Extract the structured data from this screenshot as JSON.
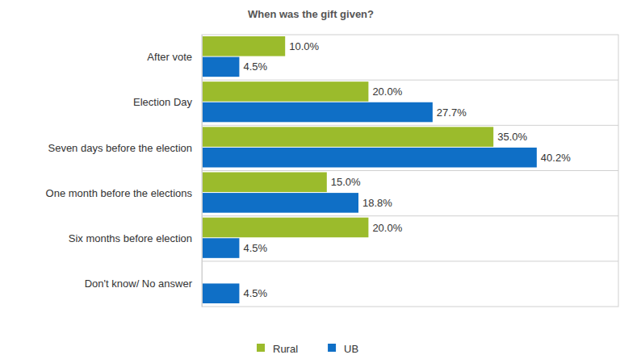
{
  "chart_data": {
    "type": "bar",
    "title": "When was the gift given?",
    "orientation": "horizontal",
    "categories": [
      "After vote",
      "Election Day",
      "Seven days before the election",
      "One month before the elections",
      "Six months before election",
      "Don't know/ No answer"
    ],
    "series": [
      {
        "name": "Rural",
        "color": "#9bbb2c",
        "values": [
          10,
          20,
          35,
          15,
          20,
          null
        ],
        "value_labels": [
          "10.0%",
          "20.0%",
          "35.0%",
          "15.0%",
          "20.0%",
          null
        ]
      },
      {
        "name": "UB",
        "color": "#0f6fc6",
        "values": [
          4.5,
          27.7,
          40.2,
          18.8,
          4.5,
          4.5
        ],
        "value_labels": [
          "4.5%",
          "27.7%",
          "40.2%",
          "18.8%",
          "4.5%",
          "4.5%"
        ]
      }
    ],
    "xlim": [
      0,
      50
    ],
    "data_labels": true,
    "tick_labels": "y",
    "legend": "bottom"
  }
}
